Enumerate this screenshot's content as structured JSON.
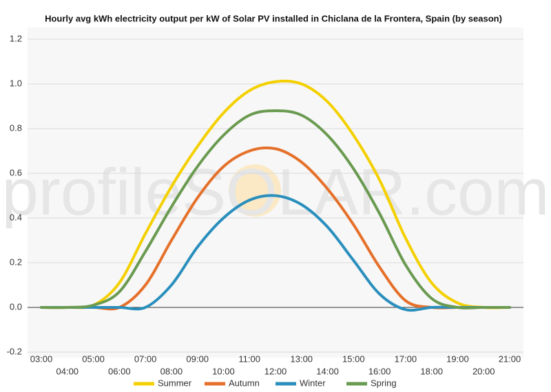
{
  "chart_data": {
    "type": "line",
    "title": "Hourly avg kWh electricity output per kW of Solar PV installed in Chiclana de la Frontera, Spain (by season)",
    "watermark": "profileSOLAR.com",
    "categories": [
      "03:00",
      "04:00",
      "05:00",
      "06:00",
      "07:00",
      "08:00",
      "09:00",
      "10:00",
      "11:00",
      "12:00",
      "13:00",
      "14:00",
      "15:00",
      "16:00",
      "17:00",
      "18:00",
      "19:00",
      "20:00",
      "21:00"
    ],
    "series": [
      {
        "name": "Summer",
        "color": "#f4d000",
        "values": [
          0,
          0,
          0.01,
          0.11,
          0.33,
          0.54,
          0.72,
          0.87,
          0.97,
          1.01,
          1.0,
          0.92,
          0.77,
          0.57,
          0.31,
          0.11,
          0.02,
          0,
          0
        ]
      },
      {
        "name": "Autumn",
        "color": "#e5702a",
        "values": [
          0,
          0,
          0,
          0,
          0.1,
          0.3,
          0.49,
          0.63,
          0.7,
          0.71,
          0.65,
          0.53,
          0.37,
          0.18,
          0.03,
          0,
          0,
          0,
          0
        ]
      },
      {
        "name": "Winter",
        "color": "#2a8fbd",
        "values": [
          0,
          0,
          0,
          0,
          0,
          0.1,
          0.27,
          0.4,
          0.48,
          0.5,
          0.46,
          0.36,
          0.21,
          0.06,
          -0.01,
          0,
          0,
          0,
          0
        ]
      },
      {
        "name": "Spring",
        "color": "#6a9a50",
        "values": [
          0,
          0,
          0.01,
          0.07,
          0.25,
          0.45,
          0.63,
          0.77,
          0.86,
          0.88,
          0.86,
          0.77,
          0.62,
          0.42,
          0.19,
          0.04,
          0,
          0,
          0
        ]
      }
    ],
    "ylim": [
      -0.2,
      1.2
    ],
    "yticks": [
      -0.2,
      {
        "value": 0,
        "label": "0.0"
      },
      0.2,
      0.4,
      0.6,
      0.8,
      {
        "value": 1,
        "label": "1.0"
      },
      1.2
    ],
    "grid": true,
    "legend": "bottom"
  }
}
